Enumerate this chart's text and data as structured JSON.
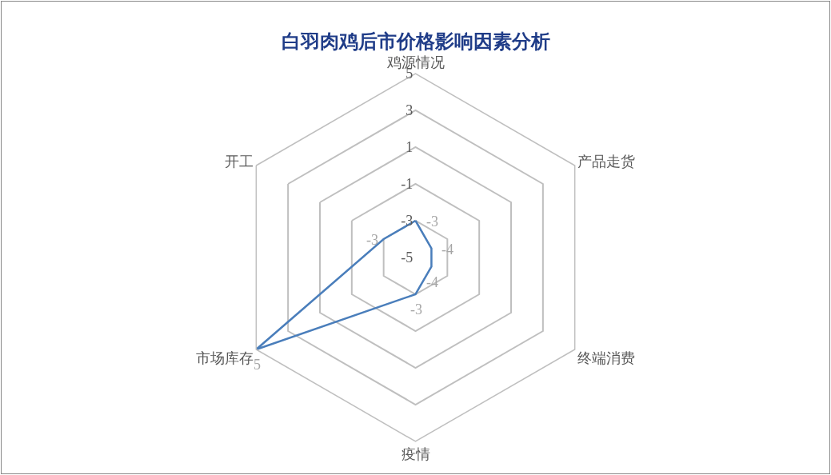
{
  "chart_data": {
    "type": "radar",
    "title": "白羽肉鸡后市价格影响因素分析",
    "categories": [
      "鸡源情况",
      "产品走货",
      "终端消费",
      "疫情",
      "市场库存",
      "开工"
    ],
    "series": [
      {
        "color": "#4a7ebb",
        "values": [
          -3,
          -4,
          -4,
          -3,
          5,
          -3
        ]
      }
    ],
    "ylim": [
      -5,
      5
    ],
    "yticks": [
      -5,
      -3,
      -1,
      1,
      3,
      5
    ],
    "grid": true,
    "data_labels": true
  }
}
